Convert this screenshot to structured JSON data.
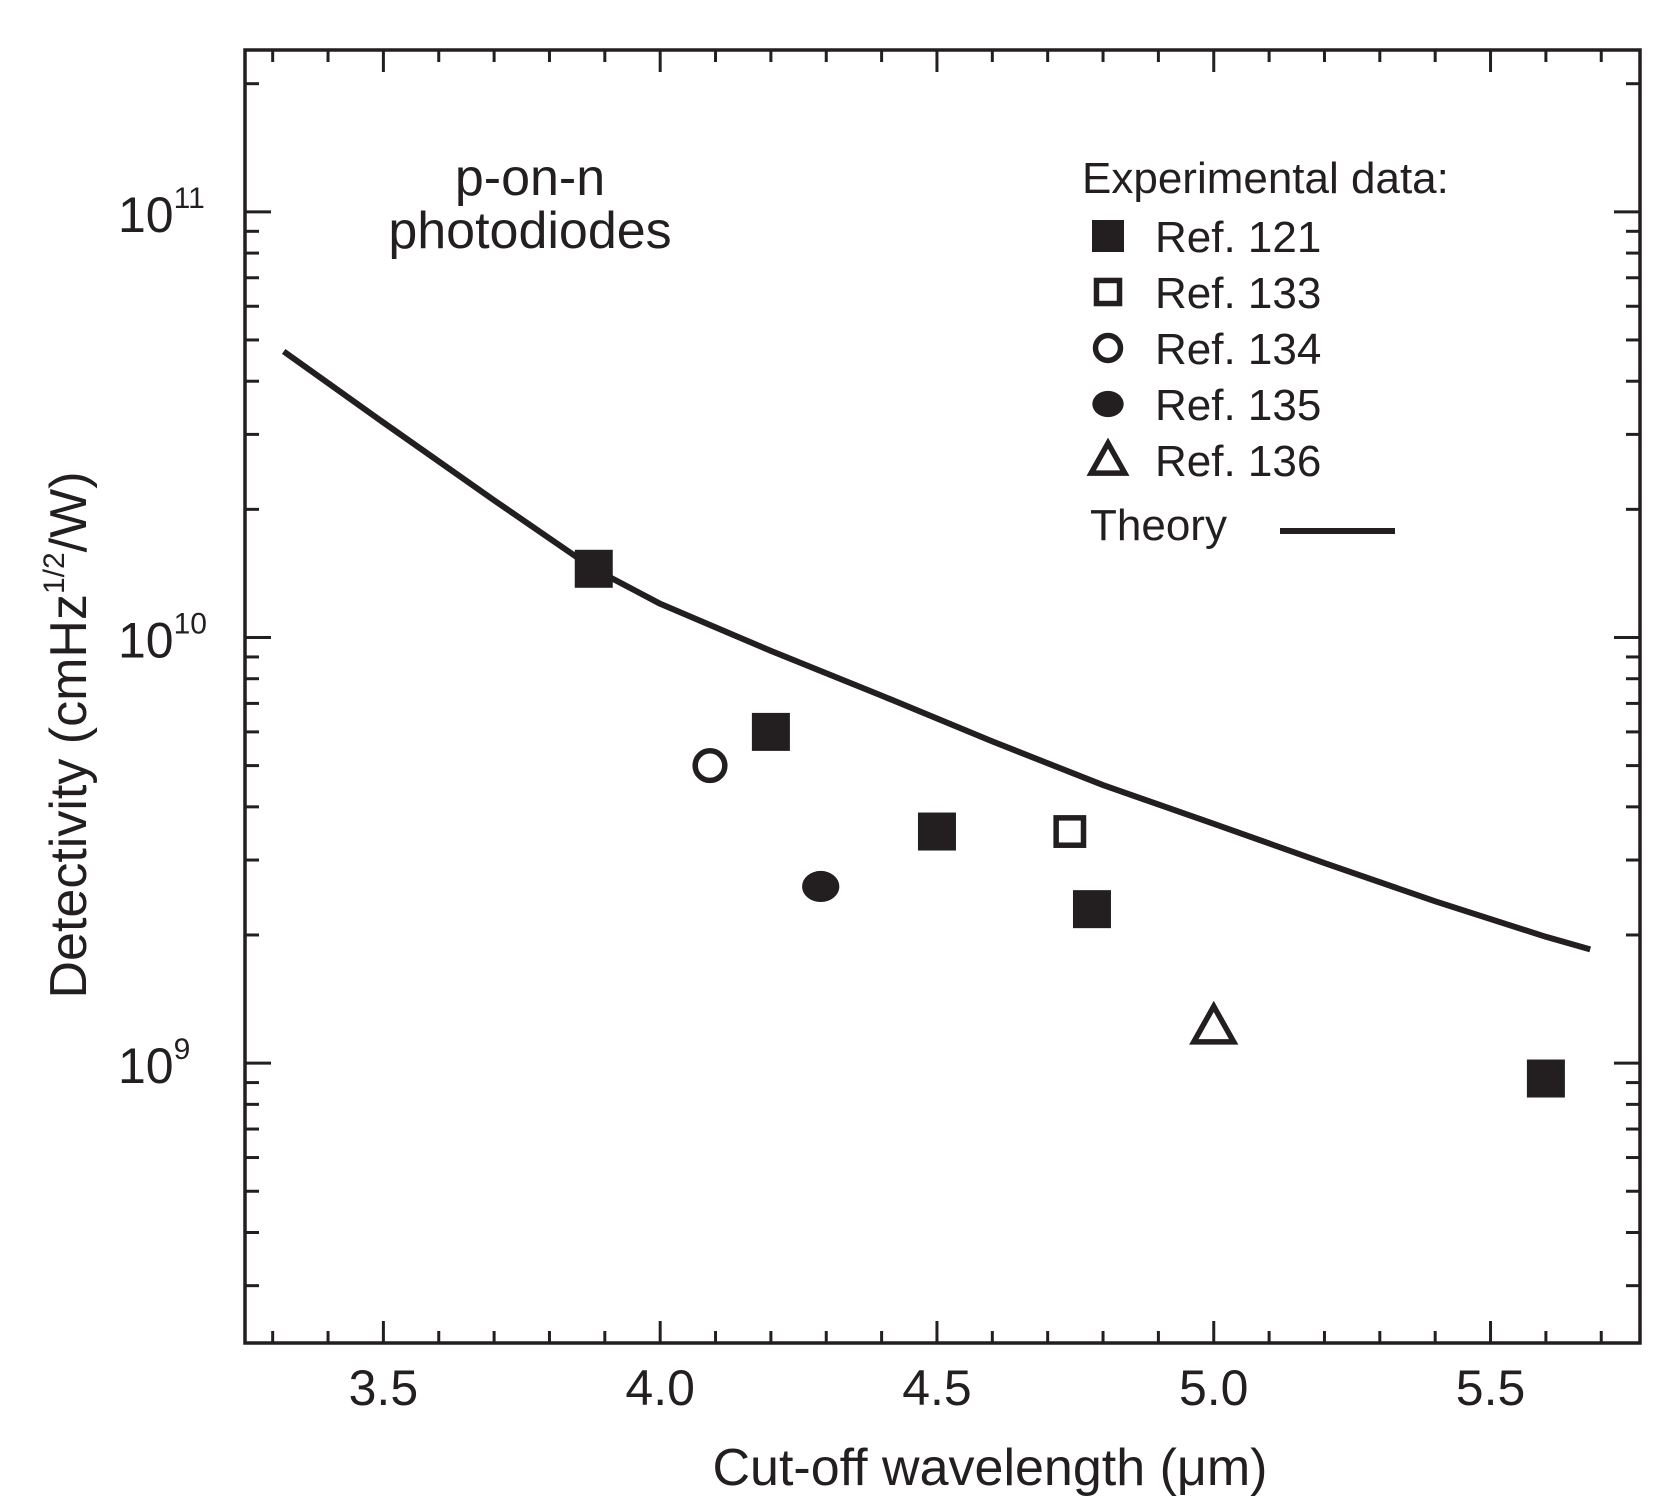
{
  "chart_data": {
    "type": "scatter",
    "title": "",
    "annotation": [
      "p-on-n",
      "photodiodes"
    ],
    "xlabel": "Cut-off wavelength (μm)",
    "ylabel": {
      "main": "Detectivity (cmHz",
      "sup": "1/2",
      "end": "/W)"
    },
    "xlim": [
      3.25,
      5.77
    ],
    "ylim": [
      220000000.0,
      240000000000.0
    ],
    "yscale": "log",
    "xticks": [
      {
        "value": 3.5,
        "label": "3.5"
      },
      {
        "value": 4.0,
        "label": "4.0"
      },
      {
        "value": 4.5,
        "label": "4.5"
      },
      {
        "value": 5.0,
        "label": "5.0"
      },
      {
        "value": 5.5,
        "label": "5.5"
      }
    ],
    "yticks": [
      {
        "value": 1000000000.0,
        "base": "10",
        "exp": "9"
      },
      {
        "value": 10000000000.0,
        "base": "10",
        "exp": "10"
      },
      {
        "value": 100000000000.0,
        "base": "10",
        "exp": "11"
      }
    ],
    "legend": {
      "title": "Experimental data:",
      "position": "top-right",
      "theory_label": "Theory"
    },
    "series": [
      {
        "name": "Ref. 121",
        "marker": "filled-square",
        "x": [
          3.88,
          4.2,
          4.5,
          4.78,
          5.6
        ],
        "y": [
          14500000000.0,
          6000000000.0,
          3500000000.0,
          2300000000.0,
          920000000.0
        ]
      },
      {
        "name": "Ref. 133",
        "marker": "open-square",
        "x": [
          4.74
        ],
        "y": [
          3500000000.0
        ]
      },
      {
        "name": "Ref. 134",
        "marker": "open-circle",
        "x": [
          4.09
        ],
        "y": [
          5000000000.0
        ]
      },
      {
        "name": "Ref. 135",
        "marker": "filled-circle",
        "x": [
          4.29
        ],
        "y": [
          2600000000.0
        ]
      },
      {
        "name": "Ref. 136",
        "marker": "open-triangle",
        "x": [
          5.0
        ],
        "y": [
          1220000000.0
        ]
      }
    ],
    "theory": {
      "name": "Theory",
      "x": [
        3.32,
        3.5,
        3.7,
        3.88,
        4.0,
        4.2,
        4.4,
        4.6,
        4.8,
        5.0,
        5.2,
        5.4,
        5.6,
        5.68
      ],
      "y": [
        47000000000.0,
        32000000000.0,
        21000000000.0,
        14500000000.0,
        12000000000.0,
        9300000000.0,
        7300000000.0,
        5700000000.0,
        4500000000.0,
        3650000000.0,
        2950000000.0,
        2400000000.0,
        1980000000.0,
        1850000000.0
      ]
    }
  }
}
